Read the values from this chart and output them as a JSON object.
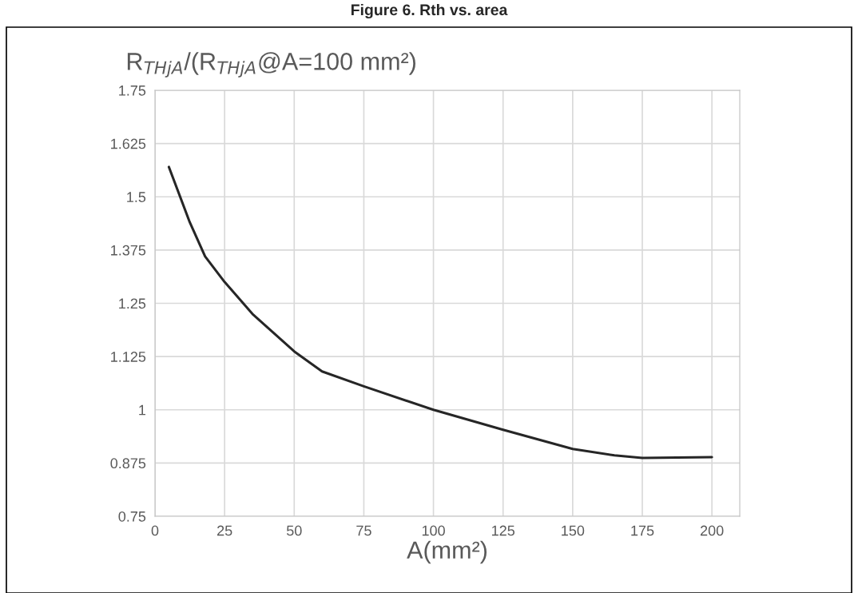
{
  "chart_data": {
    "type": "line",
    "title": "Figure 6. Rth vs. area",
    "ylabel": "R$_{THjA}$/(R$_{THjA}$@A=100 mm²)",
    "xlabel": "A(mm²)",
    "x": [
      5,
      12.5,
      18,
      25,
      35,
      50,
      60,
      75,
      100,
      125,
      150,
      165,
      175,
      187.5,
      200
    ],
    "series": [
      {
        "color": "#262626",
        "values": [
          1.57,
          1.44,
          1.36,
          1.3,
          1.225,
          1.137,
          1.09,
          1.055,
          1.0,
          0.953,
          0.908,
          0.893,
          0.887,
          0.888,
          0.889
        ]
      }
    ],
    "xlim": [
      0,
      210
    ],
    "xticks": [
      0,
      25,
      50,
      75,
      100,
      125,
      150,
      175,
      200
    ],
    "ylim": [
      0.75,
      1.75
    ],
    "yticks": [
      0.75,
      0.875,
      1,
      1.125,
      1.25,
      1.375,
      1.5,
      1.625,
      1.75
    ],
    "grid": true,
    "marker": "none",
    "line_style": "solid"
  }
}
